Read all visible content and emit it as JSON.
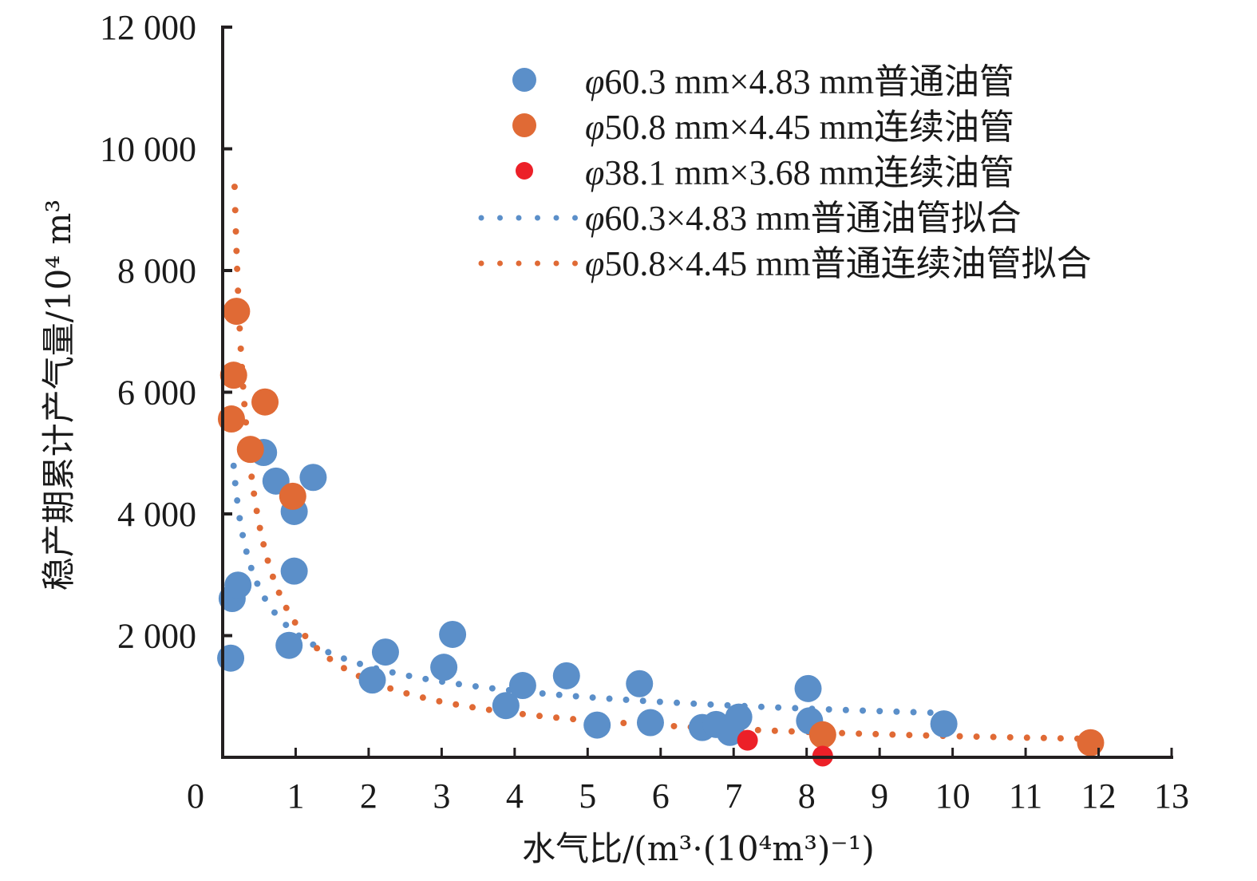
{
  "chart_data": {
    "type": "scatter",
    "title": "",
    "xlabel": "水气比/(m³·(10⁴m³)⁻¹)",
    "ylabel": "稳产期累计产气量/10⁴ m³",
    "xlim": [
      0,
      13
    ],
    "ylim": [
      0,
      12000
    ],
    "x_ticks": [
      0,
      1,
      2,
      3,
      4,
      5,
      6,
      7,
      8,
      9,
      10,
      11,
      12,
      13
    ],
    "x_tick_labels": [
      "0",
      "1",
      "2",
      "3",
      "4",
      "5",
      "6",
      "7",
      "8",
      "9",
      "10",
      "11",
      "12",
      "13"
    ],
    "y_ticks": [
      2000,
      4000,
      6000,
      8000,
      10000,
      12000
    ],
    "y_tick_labels": [
      "2 000",
      "4 000",
      "6 000",
      "8 000",
      "10 000",
      "12 000"
    ],
    "grid": false,
    "legend_position": "top-right",
    "series": [
      {
        "name": "φ60.3 mm×4.83 mm普通油管",
        "legend_prefix": "φ",
        "legend_rest": "60.3 mm×4.83 mm普通油管",
        "kind": "scatter",
        "marker": "large-circle",
        "color": "#5b8fc9",
        "points": [
          [
            0.11,
            1630
          ],
          [
            0.13,
            2610
          ],
          [
            0.21,
            2830
          ],
          [
            0.56,
            5010
          ],
          [
            0.73,
            4540
          ],
          [
            0.98,
            4040
          ],
          [
            0.98,
            3060
          ],
          [
            0.91,
            1840
          ],
          [
            1.24,
            4600
          ],
          [
            2.05,
            1270
          ],
          [
            2.23,
            1730
          ],
          [
            3.03,
            1480
          ],
          [
            3.15,
            2020
          ],
          [
            3.88,
            850
          ],
          [
            4.11,
            1180
          ],
          [
            4.71,
            1340
          ],
          [
            5.13,
            530
          ],
          [
            5.71,
            1210
          ],
          [
            5.86,
            570
          ],
          [
            6.57,
            490
          ],
          [
            6.76,
            540
          ],
          [
            6.95,
            410
          ],
          [
            7.07,
            660
          ],
          [
            8.02,
            1130
          ],
          [
            8.04,
            600
          ],
          [
            9.88,
            550
          ]
        ]
      },
      {
        "name": "φ50.8 mm×4.45 mm连续油管",
        "legend_prefix": "φ",
        "legend_rest": "50.8 mm×4.45 mm连续油管",
        "kind": "scatter",
        "marker": "large-circle",
        "color": "#e06a35",
        "points": [
          [
            0.19,
            7330
          ],
          [
            0.15,
            6280
          ],
          [
            0.12,
            5560
          ],
          [
            0.58,
            5840
          ],
          [
            0.38,
            5060
          ],
          [
            0.96,
            4290
          ],
          [
            8.22,
            370
          ],
          [
            11.89,
            240
          ]
        ]
      },
      {
        "name": "φ38.1 mm×3.68 mm连续油管",
        "legend_prefix": "φ",
        "legend_rest": "38.1 mm×3.68 mm连续油管",
        "kind": "scatter",
        "marker": "small-circle",
        "color": "#ec2028",
        "points": [
          [
            7.19,
            280
          ],
          [
            8.22,
            20
          ]
        ]
      },
      {
        "name": "φ60.3×4.83 mm普通油管拟合",
        "legend_prefix": "φ",
        "legend_rest": "60.3×4.83 mm普通油管拟合",
        "kind": "fit",
        "style": "dotted",
        "color": "#5b8fc9",
        "model": "power",
        "a": 2040,
        "b": -0.45,
        "x_range": [
          0.15,
          9.9
        ]
      },
      {
        "name": "φ50.8×4.45 mm普通连续油管拟合",
        "legend_prefix": "φ",
        "legend_rest": "50.8×4.45 mm普通连续油管拟合",
        "kind": "fit",
        "style": "dotted",
        "color": "#e06a35",
        "model": "power",
        "a": 2200,
        "b": -0.8,
        "x_range": [
          0.14,
          11.8
        ]
      }
    ]
  }
}
